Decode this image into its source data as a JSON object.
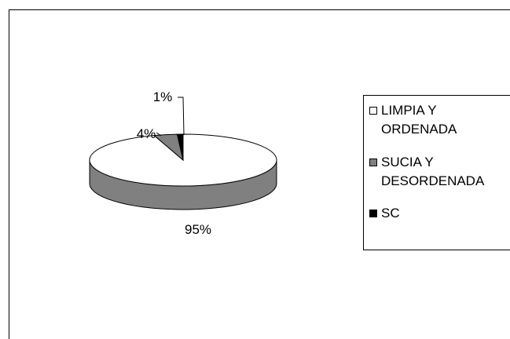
{
  "chart_data": {
    "type": "pie",
    "title": "",
    "categories": [
      "LIMPIA Y\nORDENADA",
      "SUCIA Y\nDESORDENADA",
      "SC"
    ],
    "values": [
      95,
      4,
      1
    ],
    "data_labels": [
      "95%",
      "4%",
      "1%"
    ],
    "colors": [
      "#ffffff",
      "#808080",
      "#000000"
    ],
    "legend_position": "right",
    "style": "3d"
  }
}
